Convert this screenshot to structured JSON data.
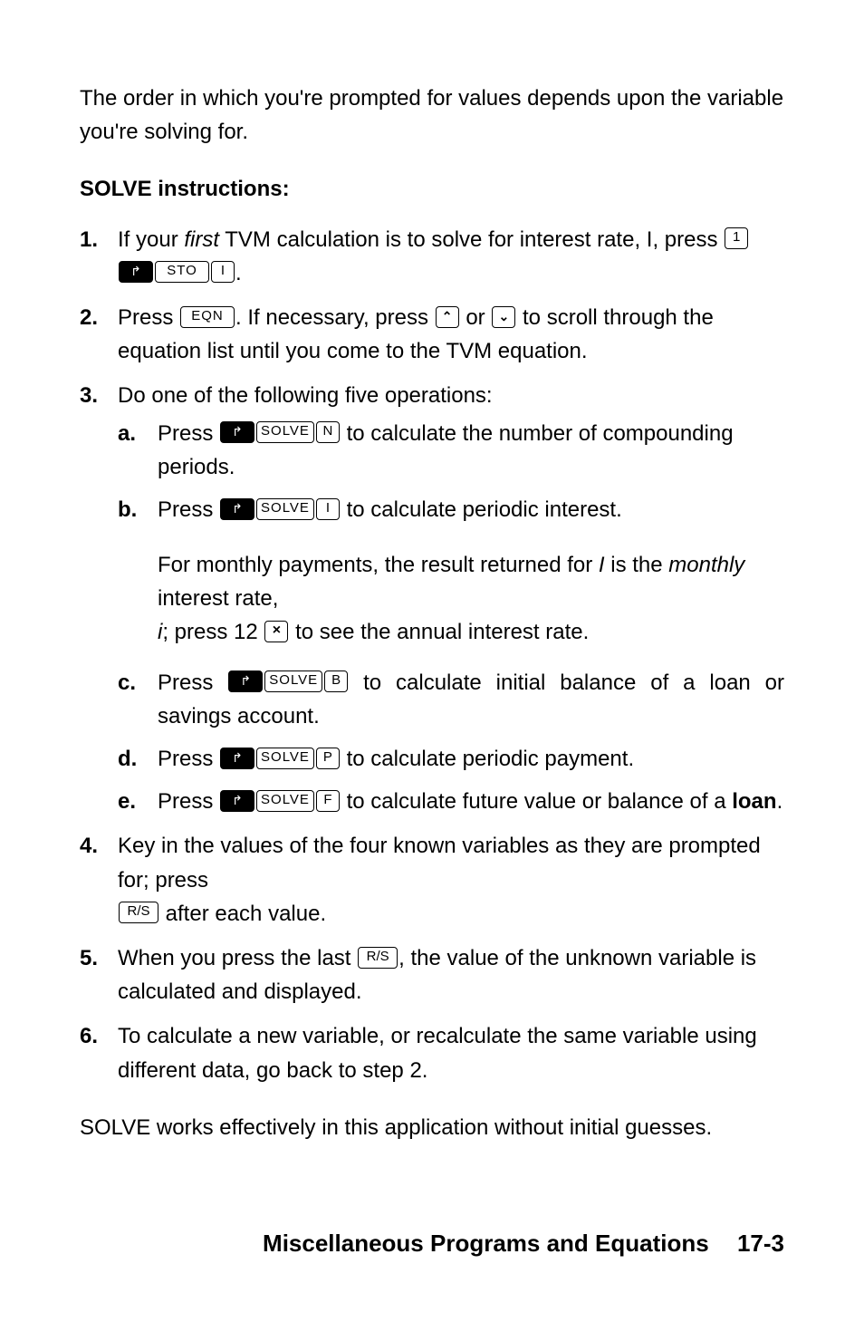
{
  "intro": "The order in which you're prompted for values depends upon the variable you're solving for.",
  "heading": "SOLVE instructions:",
  "keys": {
    "one": "1",
    "sto": "STO",
    "i": "I",
    "eqn": "EQN",
    "solve": "SOLVE",
    "n": "N",
    "b": "B",
    "p": "P",
    "f": "F",
    "rs": "R/S"
  },
  "steps": {
    "s1": {
      "num": "1.",
      "pre": "If your ",
      "first": "first",
      "mid": " TVM calculation is to solve for interest rate, I, press ",
      "line2_end": "."
    },
    "s2": {
      "num": "2.",
      "a": "Press ",
      "b": ". If necessary, press ",
      "c": " or ",
      "d": " to scroll through the equation list until you come to the TVM equation."
    },
    "s3": {
      "num": "3.",
      "text": "Do one of the following five operations:",
      "a": {
        "l": "a.",
        "pre": "Press ",
        "post": " to calculate the number of compounding periods."
      },
      "b": {
        "l": "b.",
        "pre": "Press ",
        "post": " to calculate periodic interest."
      },
      "b2a": "For monthly payments, the result returned for ",
      "b2_I": "I",
      "b2b": " is the ",
      "b2_monthly": "monthly",
      "b2c": " interest rate, ",
      "b2_i": "i",
      "b2d": "; press 12 ",
      "b2e": " to see the annual interest rate.",
      "c": {
        "l": "c.",
        "pre": "Press ",
        "post": " to calculate initial balance of a loan or savings account."
      },
      "d": {
        "l": "d.",
        "pre": "Press ",
        "post": " to calculate periodic payment."
      },
      "e": {
        "l": "e.",
        "pre": "Press ",
        "post1": " to calculate future value or balance of a ",
        "loan": "loan",
        "post2": "."
      }
    },
    "s4": {
      "num": "4.",
      "a": "Key in the values of the four known variables as they are prompted for; press ",
      "b": " after each value."
    },
    "s5": {
      "num": "5.",
      "a": "When you press the last ",
      "b": ", the value of the unknown variable is calculated and displayed."
    },
    "s6": {
      "num": "6.",
      "text": "To calculate a new variable, or recalculate the same variable using different data, go back to step 2."
    }
  },
  "closing": "SOLVE works effectively in this application without initial guesses.",
  "footer": {
    "title": "Miscellaneous Programs and Equations",
    "page": "17-3"
  }
}
